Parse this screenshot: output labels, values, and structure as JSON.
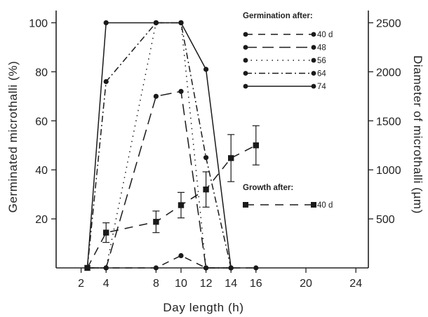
{
  "chart_data": {
    "type": "line",
    "xlabel": "Day length (h)",
    "ylabel": "Germinated microthalli (%)",
    "y2label": "Diameter of microthalli (µm)",
    "xlim": [
      0,
      25
    ],
    "ylim": [
      0,
      105
    ],
    "y2lim": [
      0,
      2625
    ],
    "x_ticks": [
      2,
      4,
      8,
      10,
      12,
      14,
      16,
      20,
      24
    ],
    "y_ticks": [
      20,
      40,
      60,
      80,
      100
    ],
    "y2_ticks": [
      500,
      1000,
      1500,
      2000,
      2500
    ],
    "legend": {
      "germination_title": "Germination after:",
      "growth_title": "Growth after:",
      "placement": "top-right"
    },
    "series": [
      {
        "name": "40 d",
        "group": "germination",
        "dash": "10 8",
        "marker": "circle",
        "x": [
          2.5,
          4,
          8,
          10,
          12,
          14,
          16
        ],
        "y": [
          0,
          0,
          0,
          5,
          0,
          0,
          0
        ]
      },
      {
        "name": "48",
        "group": "germination",
        "dash": "16 8",
        "marker": "circle",
        "x": [
          2.5,
          4,
          8,
          10,
          12,
          14
        ],
        "y": [
          0,
          0,
          70,
          72,
          0,
          0
        ]
      },
      {
        "name": "56",
        "group": "germination",
        "dash": "1.5 6",
        "marker": "circle",
        "x": [
          2.5,
          4,
          8,
          10,
          12,
          14
        ],
        "y": [
          0,
          0,
          100,
          100,
          0,
          0
        ]
      },
      {
        "name": "64",
        "group": "germination",
        "dash": "9 4 2 4",
        "marker": "circle",
        "x": [
          2.5,
          4,
          8,
          10,
          12,
          14
        ],
        "y": [
          0,
          76,
          100,
          100,
          45,
          0
        ]
      },
      {
        "name": "74",
        "group": "germination",
        "dash": "",
        "marker": "circle",
        "x": [
          2.5,
          4,
          8,
          10,
          12,
          14
        ],
        "y": [
          0,
          100,
          100,
          100,
          81,
          0
        ]
      },
      {
        "name": "40 d",
        "group": "growth",
        "axis": "right",
        "dash": "12 9",
        "marker": "square",
        "x": [
          2.5,
          4,
          8,
          10,
          12,
          14,
          16
        ],
        "y": [
          0,
          360,
          470,
          640,
          800,
          1120,
          1250
        ],
        "err": [
          0,
          100,
          110,
          130,
          180,
          240,
          200
        ]
      }
    ]
  }
}
